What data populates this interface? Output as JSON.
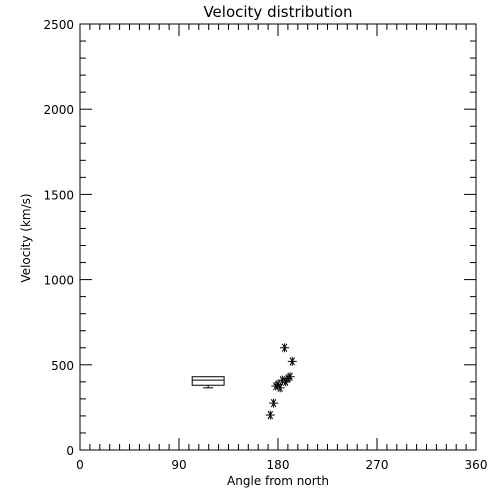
{
  "chart_data": {
    "type": "scatter",
    "title": "Velocity distribution",
    "xlabel": "Angle from north",
    "ylabel": "Velocity (km/s)",
    "xlim": [
      0,
      360
    ],
    "ylim": [
      0,
      2500
    ],
    "xticks": [
      0,
      90,
      180,
      270,
      360
    ],
    "yticks": [
      0,
      500,
      1000,
      1500,
      2000,
      2500
    ],
    "grid": false,
    "color": "#000000",
    "marker": "asterisk",
    "points": [
      {
        "x": 173,
        "y": 205
      },
      {
        "x": 176,
        "y": 275
      },
      {
        "x": 178,
        "y": 375
      },
      {
        "x": 180,
        "y": 385
      },
      {
        "x": 182,
        "y": 365
      },
      {
        "x": 184,
        "y": 410
      },
      {
        "x": 186,
        "y": 600
      },
      {
        "x": 187,
        "y": 400
      },
      {
        "x": 189,
        "y": 420
      },
      {
        "x": 191,
        "y": 430
      },
      {
        "x": 193,
        "y": 520
      }
    ],
    "box": {
      "x_start": 102,
      "x_end": 131,
      "q1": 380,
      "median": 410,
      "q3": 430,
      "whisker_low": 365,
      "whisker_high": 430
    }
  }
}
